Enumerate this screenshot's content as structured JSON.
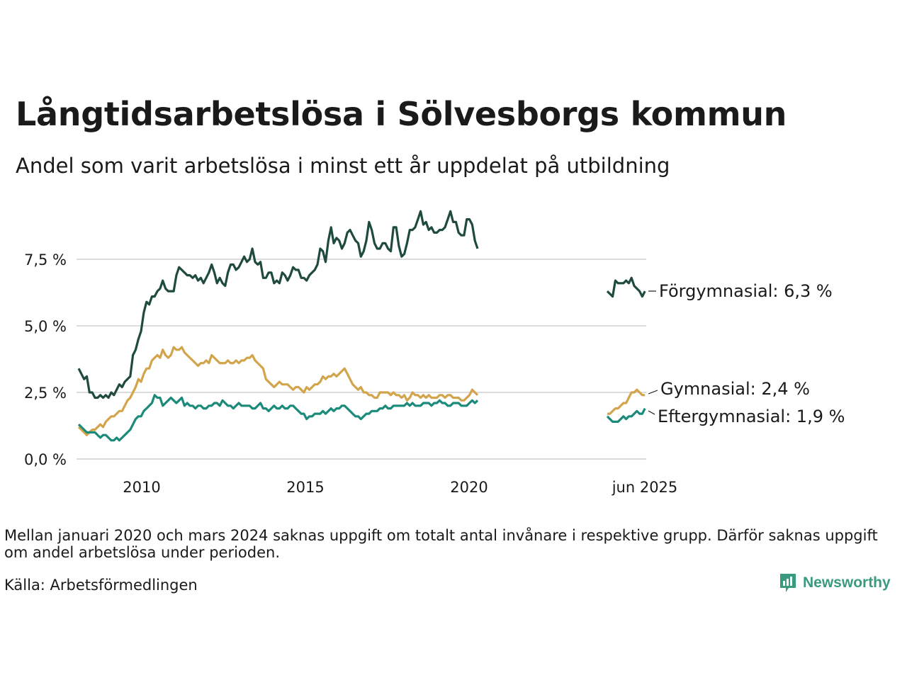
{
  "title": "Långtidsarbetslösa i Sölvesborgs kommun",
  "subtitle": "Andel som varit arbetslösa i minst ett år uppdelat på utbildning",
  "note": "Mellan januari 2020 och mars 2024 saknas uppgift om totalt antal invånare i respektive grupp. Därför saknas uppgift om andel arbetslösa under perioden.",
  "source": "Källa: Arbetsförmedlingen",
  "brand": "Newsworthy",
  "chart_data": {
    "type": "line",
    "x_axis_note": "x values are month indices starting 0 = jan 2008 for the first segment; second segment listed separately",
    "xticks": [
      "2010",
      "2015",
      "2020",
      "jun 2025"
    ],
    "yticks": [
      "0,0 %",
      "2,5 %",
      "5,0 %",
      "7,5 %"
    ],
    "ylim": [
      0,
      9.5
    ],
    "grid": true,
    "series": [
      {
        "name": "Förgymnasial",
        "end_label": "Förgymnasial: 6,3 %",
        "color": "#1f4a3f",
        "segment1": [
          3.4,
          3.2,
          3.0,
          3.1,
          2.5,
          2.5,
          2.3,
          2.3,
          2.4,
          2.3,
          2.4,
          2.3,
          2.5,
          2.4,
          2.6,
          2.8,
          2.7,
          2.9,
          3.0,
          3.1,
          3.9,
          4.1,
          4.5,
          4.8,
          5.5,
          5.9,
          5.8,
          6.1,
          6.1,
          6.3,
          6.4,
          6.7,
          6.4,
          6.3,
          6.3,
          6.3,
          6.9,
          7.2,
          7.1,
          7.0,
          6.9,
          6.9,
          6.8,
          6.9,
          6.7,
          6.8,
          6.6,
          6.8,
          7.0,
          7.3,
          7.0,
          6.6,
          6.8,
          6.6,
          6.5,
          7.0,
          7.3,
          7.3,
          7.1,
          7.2,
          7.4,
          7.6,
          7.4,
          7.5,
          7.9,
          7.4,
          7.3,
          7.4,
          6.8,
          6.8,
          7.0,
          7.0,
          6.6,
          6.7,
          6.6,
          7.0,
          6.9,
          6.7,
          6.9,
          7.2,
          7.1,
          7.1,
          6.8,
          6.8,
          6.7,
          6.9,
          7.0,
          7.1,
          7.3,
          7.9,
          7.8,
          7.4,
          8.2,
          8.7,
          8.1,
          8.3,
          8.2,
          7.9,
          8.1,
          8.5,
          8.6,
          8.4,
          8.2,
          8.1,
          7.6,
          7.8,
          8.2,
          8.9,
          8.6,
          8.1,
          7.9,
          7.9,
          8.1,
          8.1,
          7.9,
          7.8,
          8.7,
          8.7,
          8.0,
          7.6,
          7.7,
          8.1,
          8.6,
          8.6,
          8.7,
          9.0,
          9.3,
          8.8,
          8.9,
          8.6,
          8.7,
          8.5,
          8.5,
          8.6,
          8.6,
          8.7,
          9.0,
          9.3,
          8.9,
          8.9,
          8.5,
          8.4,
          8.4,
          9.0,
          9.0,
          8.8,
          8.2,
          7.9
        ],
        "segment2": [
          6.3,
          6.2,
          6.1,
          6.7,
          6.6,
          6.6,
          6.6,
          6.7,
          6.6,
          6.8,
          6.5,
          6.4,
          6.3,
          6.1,
          6.3
        ]
      },
      {
        "name": "Gymnasial",
        "end_label": "Gymnasial: 2,4 %",
        "color": "#d2a44b",
        "segment1": [
          1.2,
          1.1,
          1.0,
          0.9,
          1.0,
          1.1,
          1.1,
          1.2,
          1.3,
          1.2,
          1.4,
          1.5,
          1.6,
          1.6,
          1.7,
          1.8,
          1.8,
          2.0,
          2.2,
          2.3,
          2.5,
          2.7,
          3.0,
          2.9,
          3.2,
          3.4,
          3.4,
          3.7,
          3.8,
          3.9,
          3.8,
          4.1,
          3.9,
          3.8,
          3.9,
          4.2,
          4.1,
          4.1,
          4.2,
          4.0,
          3.9,
          3.8,
          3.7,
          3.6,
          3.5,
          3.6,
          3.6,
          3.7,
          3.6,
          3.9,
          3.8,
          3.7,
          3.6,
          3.6,
          3.6,
          3.7,
          3.6,
          3.6,
          3.7,
          3.6,
          3.7,
          3.7,
          3.8,
          3.8,
          3.9,
          3.7,
          3.6,
          3.5,
          3.4,
          3.0,
          2.9,
          2.8,
          2.7,
          2.8,
          2.9,
          2.8,
          2.8,
          2.8,
          2.7,
          2.6,
          2.7,
          2.7,
          2.6,
          2.5,
          2.7,
          2.6,
          2.7,
          2.8,
          2.8,
          2.9,
          3.1,
          3.0,
          3.1,
          3.1,
          3.2,
          3.1,
          3.2,
          3.3,
          3.4,
          3.2,
          3.0,
          2.8,
          2.7,
          2.6,
          2.7,
          2.5,
          2.5,
          2.4,
          2.4,
          2.3,
          2.3,
          2.5,
          2.5,
          2.5,
          2.5,
          2.4,
          2.5,
          2.4,
          2.4,
          2.3,
          2.4,
          2.2,
          2.3,
          2.5,
          2.4,
          2.4,
          2.3,
          2.4,
          2.3,
          2.4,
          2.3,
          2.3,
          2.3,
          2.4,
          2.4,
          2.3,
          2.4,
          2.4,
          2.3,
          2.3,
          2.3,
          2.2,
          2.2,
          2.3,
          2.4,
          2.6,
          2.5,
          2.4
        ],
        "segment2": [
          1.7,
          1.7,
          1.8,
          1.9,
          1.9,
          2.0,
          2.1,
          2.1,
          2.3,
          2.5,
          2.5,
          2.6,
          2.5,
          2.4,
          2.4
        ]
      },
      {
        "name": "Eftergymnasial",
        "end_label": "Eftergymnasial: 1,9 %",
        "color": "#1a8a7a",
        "segment1": [
          1.3,
          1.2,
          1.1,
          1.0,
          1.0,
          1.0,
          1.0,
          0.9,
          0.8,
          0.9,
          0.9,
          0.8,
          0.7,
          0.7,
          0.8,
          0.7,
          0.8,
          0.9,
          1.0,
          1.1,
          1.3,
          1.5,
          1.6,
          1.6,
          1.8,
          1.9,
          2.0,
          2.1,
          2.4,
          2.3,
          2.3,
          2.0,
          2.1,
          2.2,
          2.3,
          2.2,
          2.1,
          2.2,
          2.3,
          2.0,
          2.1,
          2.0,
          2.0,
          1.9,
          2.0,
          2.0,
          1.9,
          1.9,
          2.0,
          2.0,
          2.1,
          2.1,
          2.0,
          2.2,
          2.1,
          2.0,
          2.0,
          1.9,
          2.0,
          2.1,
          2.0,
          2.0,
          2.0,
          2.0,
          1.9,
          1.9,
          2.0,
          2.1,
          1.9,
          1.9,
          1.8,
          1.9,
          2.0,
          1.9,
          1.9,
          2.0,
          1.9,
          1.9,
          2.0,
          2.0,
          1.9,
          1.8,
          1.7,
          1.7,
          1.5,
          1.6,
          1.6,
          1.7,
          1.7,
          1.7,
          1.8,
          1.7,
          1.8,
          1.9,
          1.8,
          1.9,
          1.9,
          2.0,
          2.0,
          1.9,
          1.8,
          1.7,
          1.6,
          1.6,
          1.5,
          1.6,
          1.7,
          1.7,
          1.8,
          1.8,
          1.8,
          1.9,
          1.9,
          2.0,
          1.9,
          1.9,
          2.0,
          2.0,
          2.0,
          2.0,
          2.0,
          2.1,
          2.0,
          2.1,
          2.0,
          2.0,
          2.0,
          2.1,
          2.1,
          2.1,
          2.0,
          2.1,
          2.1,
          2.2,
          2.1,
          2.1,
          2.0,
          2.0,
          2.1,
          2.1,
          2.1,
          2.0,
          2.0,
          2.0,
          2.1,
          2.2,
          2.1,
          2.2
        ],
        "segment2": [
          1.6,
          1.5,
          1.4,
          1.4,
          1.4,
          1.5,
          1.6,
          1.5,
          1.6,
          1.6,
          1.7,
          1.8,
          1.7,
          1.7,
          1.9
        ]
      }
    ]
  }
}
